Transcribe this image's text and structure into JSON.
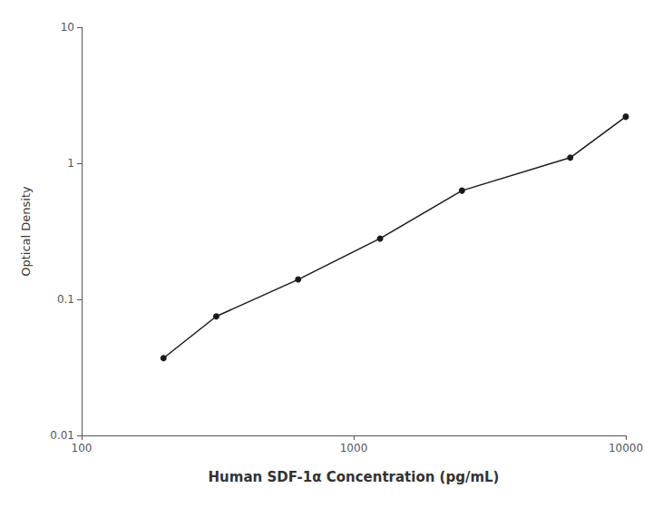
{
  "chart_data": {
    "type": "line",
    "x": [
      200,
      312.5,
      625,
      1250,
      2500,
      6250,
      10000
    ],
    "values": [
      0.037,
      0.075,
      0.14,
      0.28,
      0.63,
      1.1,
      2.2
    ],
    "xlabel": "Human SDF-1α Concentration (pg/mL)",
    "ylabel": "Optical Density",
    "xlim": [
      100,
      10000
    ],
    "ylim": [
      0.01,
      10
    ],
    "xticks": [
      100,
      1000,
      10000
    ],
    "yticks": [
      0.01,
      0.1,
      1,
      10
    ],
    "log": true,
    "grid": false,
    "color": "#1a1a1a",
    "marker": "circle"
  }
}
